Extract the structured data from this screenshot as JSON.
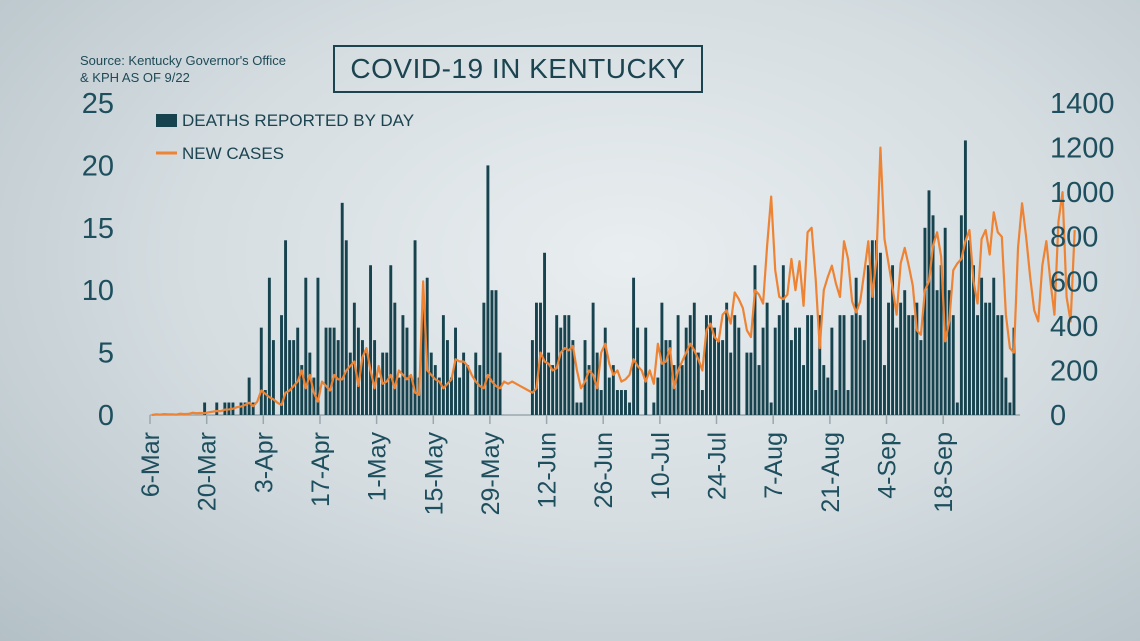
{
  "source_note": [
    "Source: Kentucky Governor's Office",
    "& KPH AS OF 9/22"
  ],
  "colors": {
    "bars": "#17434f",
    "line": "#ee8333",
    "axis": "#9aa8ae",
    "text": "#1e4f5e"
  },
  "chart_data": {
    "type": "bar",
    "title": "COVID-19 IN KENTUCKY",
    "legend": {
      "position": "top-left",
      "entries": [
        "DEATHS REPORTED BY DAY",
        "NEW CASES"
      ]
    },
    "x_tick_labels": [
      "6-Mar",
      "20-Mar",
      "3-Apr",
      "17-Apr",
      "1-May",
      "15-May",
      "29-May",
      "12-Jun",
      "26-Jun",
      "10-Jul",
      "24-Jul",
      "7-Aug",
      "21-Aug",
      "4-Sep",
      "18-Sep"
    ],
    "y_left": {
      "min": 0,
      "max": 25,
      "ticks": [
        0,
        5,
        10,
        15,
        20,
        25
      ]
    },
    "y_right": {
      "min": 0,
      "max": 1400,
      "ticks": [
        0,
        200,
        400,
        600,
        800,
        1000,
        1200,
        1400
      ]
    },
    "series": [
      {
        "name": "DEATHS REPORTED BY DAY",
        "type": "bar",
        "axis": "left",
        "values": [
          0,
          0,
          0,
          0,
          0,
          0,
          0,
          0,
          0,
          0,
          0,
          0,
          0,
          1,
          0,
          0,
          1,
          0,
          1,
          1,
          1,
          0,
          1,
          1,
          3,
          1,
          0,
          7,
          2,
          11,
          6,
          0,
          8,
          14,
          6,
          6,
          7,
          4,
          11,
          5,
          3,
          11,
          0,
          7,
          7,
          7,
          6,
          17,
          14,
          5,
          9,
          7,
          6,
          5,
          12,
          6,
          3,
          5,
          5,
          12,
          9,
          3,
          8,
          7,
          3,
          14,
          3,
          9,
          11,
          5,
          4,
          3,
          8,
          6,
          3,
          7,
          3,
          5,
          4,
          0,
          5,
          4,
          9,
          20,
          10,
          10,
          5,
          0,
          0,
          0,
          0,
          0,
          0,
          0,
          6,
          9,
          9,
          13,
          5,
          4,
          8,
          7,
          8,
          8,
          6,
          1,
          1,
          6,
          4,
          9,
          5,
          2,
          7,
          3,
          4,
          2,
          2,
          2,
          1,
          11,
          7,
          0,
          7,
          0,
          1,
          3,
          9,
          6,
          6,
          4,
          8,
          4,
          7,
          8,
          9,
          5,
          2,
          8,
          8,
          7,
          6,
          6,
          9,
          5,
          8,
          7,
          0,
          5,
          5,
          12,
          4,
          7,
          9,
          1,
          7,
          8,
          12,
          9,
          6,
          7,
          7,
          4,
          8,
          8,
          2,
          8,
          4,
          3,
          7,
          2,
          8,
          8,
          2,
          8,
          11,
          8,
          6,
          12,
          14,
          14,
          13,
          4,
          9,
          12,
          7,
          9,
          10,
          8,
          8,
          9,
          6,
          15,
          18,
          16,
          10,
          12,
          15,
          10,
          8,
          1,
          16,
          22,
          14,
          12,
          8,
          11,
          9,
          9,
          11,
          8,
          8,
          3,
          1,
          7
        ]
      },
      {
        "name": "NEW CASES",
        "type": "line",
        "axis": "right",
        "values": [
          0,
          3,
          2,
          4,
          3,
          3,
          2,
          6,
          4,
          5,
          10,
          8,
          9,
          8,
          12,
          15,
          18,
          17,
          24,
          25,
          28,
          35,
          38,
          45,
          55,
          40,
          60,
          110,
          95,
          80,
          70,
          55,
          45,
          100,
          110,
          130,
          150,
          200,
          120,
          180,
          100,
          60,
          150,
          130,
          110,
          180,
          160,
          160,
          200,
          220,
          240,
          130,
          260,
          300,
          200,
          120,
          220,
          140,
          150,
          180,
          120,
          200,
          180,
          160,
          180,
          100,
          90,
          600,
          200,
          180,
          160,
          150,
          120,
          140,
          160,
          250,
          240,
          240,
          220,
          180,
          150,
          130,
          120,
          180,
          150,
          130,
          120,
          150,
          140,
          150,
          140,
          130,
          120,
          110,
          100,
          120,
          280,
          240,
          230,
          200,
          210,
          280,
          300,
          290,
          310,
          200,
          120,
          150,
          200,
          180,
          120,
          280,
          320,
          230,
          180,
          200,
          150,
          160,
          180,
          250,
          220,
          200,
          150,
          200,
          140,
          320,
          230,
          240,
          300,
          120,
          200,
          240,
          280,
          320,
          290,
          250,
          200,
          380,
          410,
          350,
          330,
          450,
          470,
          410,
          550,
          520,
          480,
          380,
          350,
          560,
          540,
          500,
          760,
          980,
          650,
          530,
          520,
          540,
          700,
          560,
          690,
          490,
          820,
          840,
          610,
          300,
          560,
          620,
          670,
          590,
          530,
          780,
          700,
          510,
          460,
          510,
          640,
          780,
          530,
          700,
          1200,
          790,
          680,
          570,
          450,
          680,
          750,
          670,
          580,
          380,
          360,
          560,
          600,
          760,
          820,
          710,
          330,
          420,
          650,
          680,
          700,
          780,
          830,
          600,
          500,
          790,
          830,
          720,
          910,
          820,
          800,
          450,
          300,
          280,
          750,
          950,
          800,
          620,
          470,
          420,
          670,
          780,
          600,
          450,
          870,
          1000,
          530,
          420,
          830
        ]
      }
    ]
  }
}
